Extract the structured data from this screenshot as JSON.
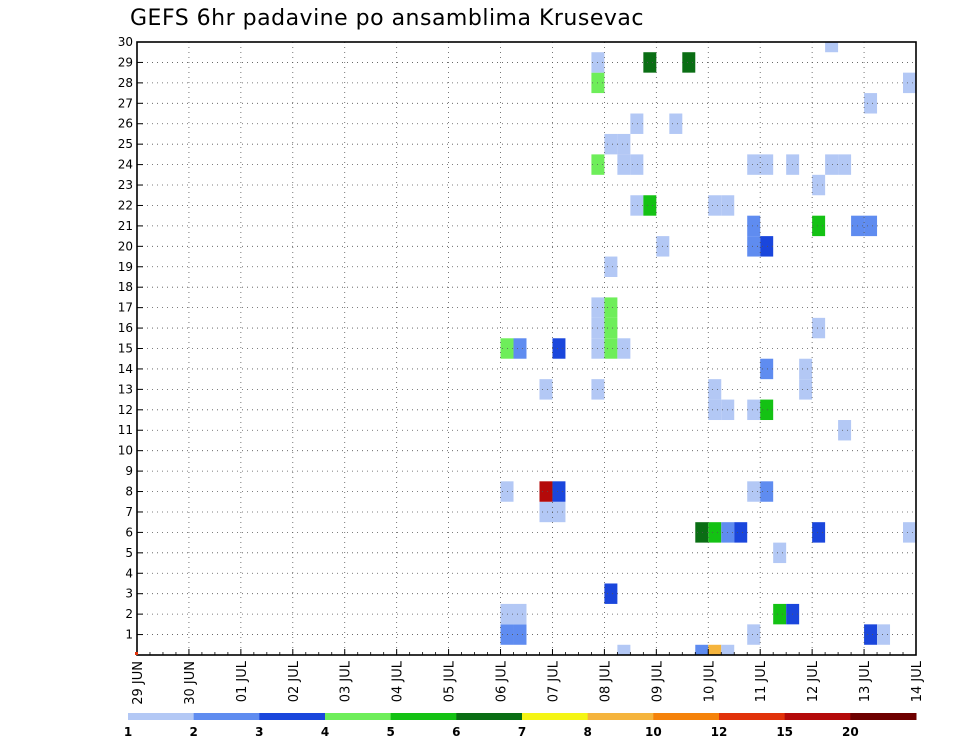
{
  "chart_data": {
    "type": "heatmap",
    "title": "GEFS 6hr padavine po ansamblima Krusevac",
    "xlabel": "",
    "ylabel": "",
    "x_ticks": [
      "29 JUN",
      "30 JUN",
      "01 JUL",
      "02 JUL",
      "03 JUL",
      "04 JUL",
      "05 JUL",
      "06 JUL",
      "07 JUL",
      "08 JUL",
      "09 JUL",
      "10 JUL",
      "11 JUL",
      "12 JUL",
      "13 JUL",
      "14 JUL"
    ],
    "y_ticks": [
      "1",
      "2",
      "3",
      "4",
      "5",
      "6",
      "7",
      "8",
      "9",
      "10",
      "11",
      "12",
      "13",
      "14",
      "15",
      "16",
      "17",
      "18",
      "19",
      "20",
      "21",
      "22",
      "23",
      "24",
      "25",
      "26",
      "27",
      "28",
      "29",
      "30"
    ],
    "xlim_hours": [
      0,
      360
    ],
    "ylim": [
      0,
      30
    ],
    "grid": true,
    "grid_style": "dotted",
    "colorbar": {
      "position": "bottom",
      "labels": [
        "1",
        "2",
        "3",
        "4",
        "5",
        "6",
        "7",
        "8",
        "10",
        "12",
        "15",
        "20"
      ],
      "colors": [
        "#b3c8f5",
        "#5f8cf0",
        "#1a46dc",
        "#6eee5a",
        "#14c214",
        "#0a6e14",
        "#f5f514",
        "#f5b43c",
        "#f5820a",
        "#e1320a",
        "#b40a0a",
        "#6e0000"
      ]
    },
    "cells": [
      {
        "t": 168,
        "m": 1,
        "c": 2
      },
      {
        "t": 174,
        "m": 1,
        "c": 2
      },
      {
        "t": 282,
        "m": 1,
        "c": 1
      },
      {
        "t": 336,
        "m": 1,
        "c": 3
      },
      {
        "t": 342,
        "m": 1,
        "c": 1
      },
      {
        "t": 168,
        "m": 2,
        "c": 1
      },
      {
        "t": 174,
        "m": 2,
        "c": 1
      },
      {
        "t": 294,
        "m": 2,
        "c": 5
      },
      {
        "t": 300,
        "m": 2,
        "c": 3
      },
      {
        "t": 216,
        "m": 3,
        "c": 3
      },
      {
        "t": 294,
        "m": 5,
        "c": 1
      },
      {
        "t": 258,
        "m": 6,
        "c": 6
      },
      {
        "t": 264,
        "m": 6,
        "c": 5
      },
      {
        "t": 270,
        "m": 6,
        "c": 2
      },
      {
        "t": 276,
        "m": 6,
        "c": 3
      },
      {
        "t": 312,
        "m": 6,
        "c": 3
      },
      {
        "t": 354,
        "m": 6,
        "c": 1
      },
      {
        "t": 186,
        "m": 7,
        "c": 1
      },
      {
        "t": 192,
        "m": 7,
        "c": 1
      },
      {
        "t": 168,
        "m": 8,
        "c": 1
      },
      {
        "t": 186,
        "m": 8,
        "c": 11
      },
      {
        "t": 192,
        "m": 8,
        "c": 3
      },
      {
        "t": 282,
        "m": 8,
        "c": 1
      },
      {
        "t": 288,
        "m": 8,
        "c": 2
      },
      {
        "t": 324,
        "m": 11,
        "c": 1
      },
      {
        "t": 264,
        "m": 12,
        "c": 1
      },
      {
        "t": 270,
        "m": 12,
        "c": 1
      },
      {
        "t": 282,
        "m": 12,
        "c": 1
      },
      {
        "t": 288,
        "m": 12,
        "c": 5
      },
      {
        "t": 186,
        "m": 13,
        "c": 1
      },
      {
        "t": 210,
        "m": 13,
        "c": 1
      },
      {
        "t": 264,
        "m": 13,
        "c": 1
      },
      {
        "t": 306,
        "m": 13,
        "c": 1
      },
      {
        "t": 288,
        "m": 14,
        "c": 2
      },
      {
        "t": 306,
        "m": 14,
        "c": 1
      },
      {
        "t": 168,
        "m": 15,
        "c": 4
      },
      {
        "t": 174,
        "m": 15,
        "c": 2
      },
      {
        "t": 192,
        "m": 15,
        "c": 3
      },
      {
        "t": 210,
        "m": 15,
        "c": 1
      },
      {
        "t": 216,
        "m": 15,
        "c": 4
      },
      {
        "t": 222,
        "m": 15,
        "c": 1
      },
      {
        "t": 210,
        "m": 16,
        "c": 1
      },
      {
        "t": 216,
        "m": 16,
        "c": 4
      },
      {
        "t": 312,
        "m": 16,
        "c": 1
      },
      {
        "t": 210,
        "m": 17,
        "c": 1
      },
      {
        "t": 216,
        "m": 17,
        "c": 4
      },
      {
        "t": 216,
        "m": 19,
        "c": 1
      },
      {
        "t": 240,
        "m": 20,
        "c": 1
      },
      {
        "t": 282,
        "m": 20,
        "c": 2
      },
      {
        "t": 288,
        "m": 20,
        "c": 3
      },
      {
        "t": 282,
        "m": 21,
        "c": 2
      },
      {
        "t": 312,
        "m": 21,
        "c": 5
      },
      {
        "t": 330,
        "m": 21,
        "c": 2
      },
      {
        "t": 336,
        "m": 21,
        "c": 2
      },
      {
        "t": 228,
        "m": 22,
        "c": 1
      },
      {
        "t": 234,
        "m": 22,
        "c": 5
      },
      {
        "t": 264,
        "m": 22,
        "c": 1
      },
      {
        "t": 270,
        "m": 22,
        "c": 1
      },
      {
        "t": 312,
        "m": 23,
        "c": 1
      },
      {
        "t": 210,
        "m": 24,
        "c": 4
      },
      {
        "t": 222,
        "m": 24,
        "c": 1
      },
      {
        "t": 228,
        "m": 24,
        "c": 1
      },
      {
        "t": 282,
        "m": 24,
        "c": 1
      },
      {
        "t": 288,
        "m": 24,
        "c": 1
      },
      {
        "t": 300,
        "m": 24,
        "c": 1
      },
      {
        "t": 318,
        "m": 24,
        "c": 1
      },
      {
        "t": 324,
        "m": 24,
        "c": 1
      },
      {
        "t": 216,
        "m": 25,
        "c": 1
      },
      {
        "t": 222,
        "m": 25,
        "c": 1
      },
      {
        "t": 228,
        "m": 26,
        "c": 1
      },
      {
        "t": 246,
        "m": 26,
        "c": 1
      },
      {
        "t": 336,
        "m": 27,
        "c": 1
      },
      {
        "t": 210,
        "m": 28,
        "c": 4
      },
      {
        "t": 354,
        "m": 28,
        "c": 1
      },
      {
        "t": 210,
        "m": 29,
        "c": 1
      },
      {
        "t": 234,
        "m": 29,
        "c": 6
      },
      {
        "t": 252,
        "m": 29,
        "c": 6
      },
      {
        "t": 318,
        "m": 30,
        "c": 1
      },
      {
        "t": 222,
        "m": 0,
        "c": 1
      },
      {
        "t": 258,
        "m": 0,
        "c": 2
      },
      {
        "t": 264,
        "m": 0,
        "c": 8
      },
      {
        "t": 270,
        "m": 0,
        "c": 1
      }
    ]
  }
}
